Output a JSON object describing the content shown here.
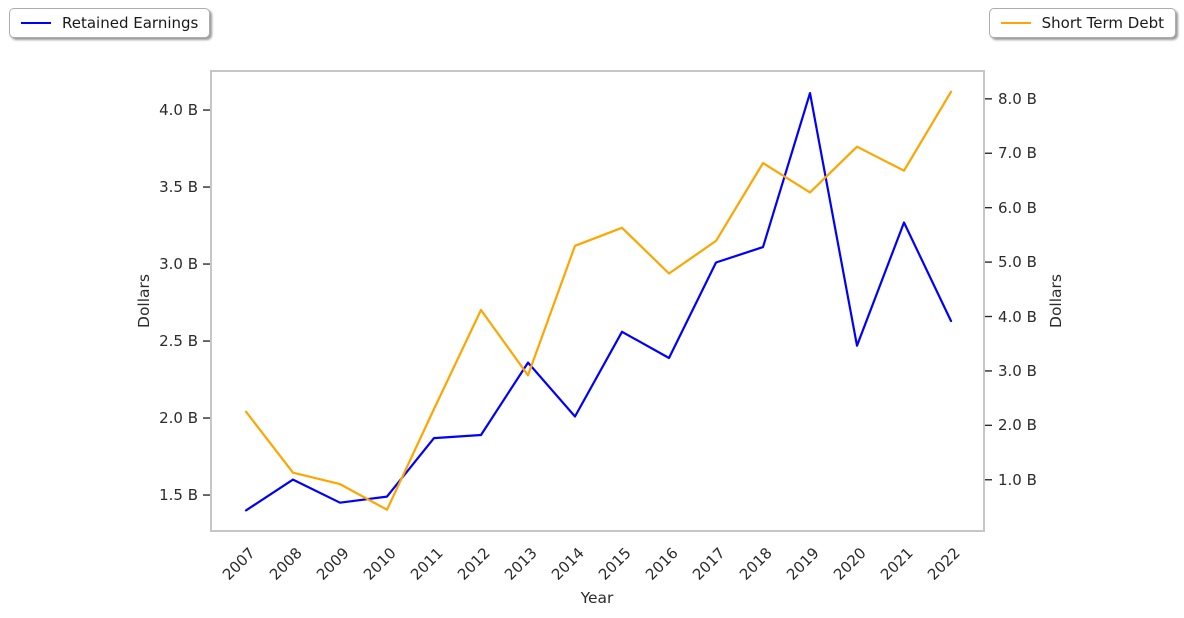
{
  "legends": [
    {
      "label": "Retained Earnings",
      "color": "#0000ff"
    },
    {
      "label": "Short Term Debt",
      "color": "#ffa500"
    }
  ],
  "chart_data": {
    "type": "line",
    "title": "",
    "xlabel": "Year",
    "grid": false,
    "legend_position": "top-left and top-right (outside plot)",
    "categories": [
      "2007",
      "2008",
      "2009",
      "2010",
      "2011",
      "2012",
      "2013",
      "2014",
      "2015",
      "2016",
      "2017",
      "2018",
      "2019",
      "2020",
      "2021",
      "2022"
    ],
    "series": [
      {
        "name": "Retained Earnings",
        "axis": "left",
        "color": "#0000ff",
        "unit": "billions of dollars",
        "values": [
          1.4,
          1.6,
          1.45,
          1.49,
          1.87,
          1.89,
          2.36,
          2.01,
          2.56,
          2.39,
          3.01,
          3.11,
          4.11,
          2.47,
          3.27,
          2.63
        ]
      },
      {
        "name": "Short Term Debt",
        "axis": "right",
        "color": "#ffa500",
        "unit": "billions of dollars",
        "values": [
          2.25,
          1.13,
          0.92,
          0.45,
          2.3,
          4.12,
          2.92,
          5.3,
          5.63,
          4.79,
          5.39,
          6.82,
          6.28,
          7.12,
          6.68,
          8.13
        ]
      }
    ],
    "left_axis": {
      "label": "Dollars",
      "tick_values": [
        1.5,
        2.0,
        2.5,
        3.0,
        3.5,
        4.0
      ],
      "tick_labels": [
        "1.5 B",
        "2.0 B",
        "2.5 B",
        "3.0 B",
        "3.5 B",
        "4.0 B"
      ],
      "range": [
        1.26,
        4.26
      ]
    },
    "right_axis": {
      "label": "Dollars",
      "tick_values": [
        1.0,
        2.0,
        3.0,
        4.0,
        5.0,
        6.0,
        7.0,
        8.0
      ],
      "tick_labels": [
        "1.0 B",
        "2.0 B",
        "3.0 B",
        "4.0 B",
        "5.0 B",
        "6.0 B",
        "7.0 B",
        "8.0 B"
      ],
      "range": [
        0.04,
        8.53
      ]
    }
  }
}
